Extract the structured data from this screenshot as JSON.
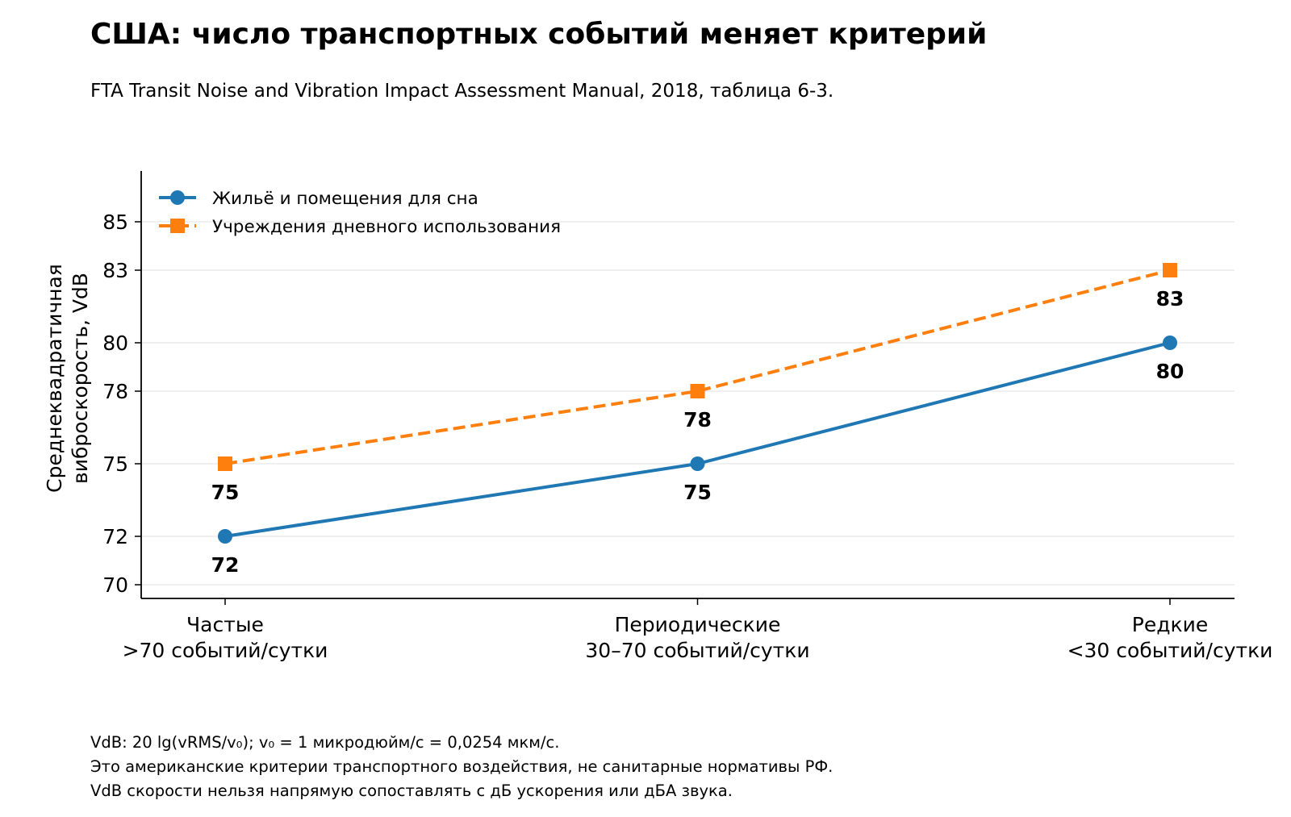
{
  "title": "США: число транспортных событий меняет критерий",
  "subtitle": "FTA Transit Noise and Vibration Impact Assessment Manual, 2018, таблица 6-3.",
  "footnotes": [
    "VdB: 20 lg(vRMS/v₀); v₀ = 1 микродюйм/с = 0,0254 мкм/с.",
    "Это американские критерии транспортного воздействия, не санитарные нормативы РФ.",
    "VdB скорости нельзя напрямую сопоставлять с дБ ускорения или дБА звука."
  ],
  "colors": {
    "series1": "#1f77b4",
    "series2": "#ff7f0e",
    "grid": "#ebebeb",
    "axis": "#000000"
  },
  "chart_data": {
    "type": "line",
    "categories": [
      [
        "Частые",
        ">70 событий/сутки"
      ],
      [
        "Периодические",
        "30–70 событий/сутки"
      ],
      [
        "Редкие",
        "<30 событий/сутки"
      ]
    ],
    "series": [
      {
        "name": "Жильё и помещения для сна",
        "values": [
          72,
          75,
          80
        ],
        "labels": [
          "72",
          "75",
          "80"
        ],
        "color": "#1f77b4",
        "line_style": "solid",
        "marker": "circle"
      },
      {
        "name": "Учреждения дневного использования",
        "values": [
          75,
          78,
          83
        ],
        "labels": [
          "75",
          "78",
          "83"
        ],
        "color": "#ff7f0e",
        "line_style": "dashed",
        "marker": "square"
      }
    ],
    "ylabel": [
      "Среднеквадратичная",
      "виброскорость, VdB"
    ],
    "xlabel": "",
    "yticks": [
      70,
      72,
      75,
      78,
      80,
      83,
      85
    ],
    "ylim": [
      69.55,
      87
    ],
    "grid": "horizontal",
    "legend": "top-left"
  }
}
